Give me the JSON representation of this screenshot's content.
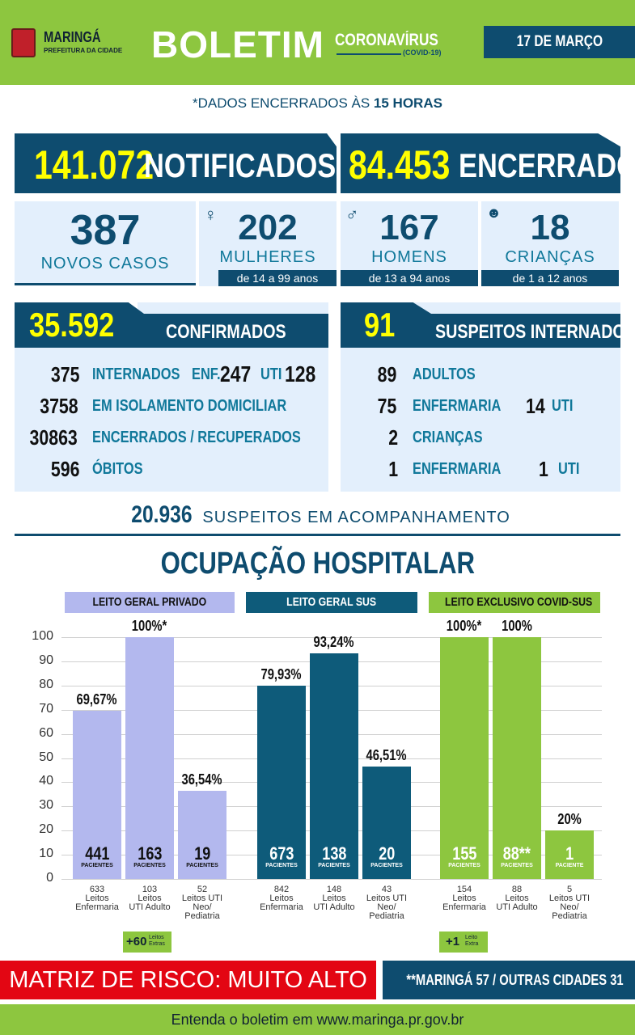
{
  "header": {
    "logo_name": "MARINGÁ",
    "logo_sub": "PREFEITURA DA CIDADE",
    "title": "BOLETIM",
    "subtitle": "CORONAVÍRUS",
    "subtitle_tag": "(COVID-19)",
    "date": "17 DE MARÇO"
  },
  "closing_note": {
    "prefix": "*DADOS ENCERRADOS ÀS ",
    "time": "15 HORAS"
  },
  "totals": {
    "notified_value": "141.072",
    "notified_label": "NOTIFICADOS",
    "closed_value": "84.453",
    "closed_label": "ENCERRADOS"
  },
  "new_cases": {
    "total_value": "387",
    "total_label": "NOVOS CASOS",
    "women_value": "202",
    "women_label": "MULHERES",
    "women_age": "de 14 a 99 anos",
    "men_value": "167",
    "men_label": "HOMENS",
    "men_age": "de 13 a 94 anos",
    "children_value": "18",
    "children_label": "CRIANÇAS",
    "children_age": "de 1 a 12 anos"
  },
  "confirmed": {
    "value": "35.592",
    "label": "CONFIRMADOS",
    "rows": [
      {
        "num": "375",
        "label": "INTERNADOS"
      },
      {
        "num": "3758",
        "label": "EM ISOLAMENTO DOMICILIAR"
      },
      {
        "num": "30863",
        "label": "ENCERRADOS / RECUPERADOS"
      },
      {
        "num": "596",
        "label": "ÓBITOS"
      }
    ],
    "enf_label": "ENF.",
    "enf_value": "247",
    "uti_label": "UTI",
    "uti_value": "128"
  },
  "suspects": {
    "value": "91",
    "label": "SUSPEITOS INTERNADOS",
    "adults_num": "89",
    "adults_label": "ADULTOS",
    "adults_enf_num": "75",
    "adults_enf_label": "ENFERMARIA",
    "adults_uti_num": "14",
    "adults_uti_label": "UTI",
    "children_num": "2",
    "children_label": "CRIANÇAS",
    "children_enf_num": "1",
    "children_enf_label": "ENFERMARIA",
    "children_uti_num": "1",
    "children_uti_label": "UTI"
  },
  "monitoring": {
    "value": "20.936",
    "label": "SUSPEITOS EM ACOMPANHAMENTO"
  },
  "occupancy": {
    "title": "OCUPAÇÃO HOSPITALAR",
    "patients_label": "PACIENTES",
    "patient_label": "PACIENTE",
    "extra_private": {
      "value": "+60",
      "label": "Leitos Extras"
    },
    "extra_covid": {
      "value": "+1",
      "label": "Leito Extra"
    }
  },
  "chart_data": {
    "type": "bar",
    "ylim": [
      0,
      100
    ],
    "yticks": [
      "0",
      "10",
      "20",
      "30",
      "40",
      "50",
      "60",
      "70",
      "80",
      "90",
      "100"
    ],
    "grid": true,
    "groups": [
      {
        "name": "LEITO GERAL PRIVADO",
        "color": "#b3b8ee",
        "bars": [
          {
            "category": "633 Leitos Enfermaria",
            "beds": "633",
            "l1": "Leitos",
            "l2": "Enfermaria",
            "l3": "",
            "value": 69.67,
            "label": "69,67%",
            "patients": "441"
          },
          {
            "category": "103 Leitos UTI Adulto",
            "beds": "103",
            "l1": "Leitos",
            "l2": "UTI Adulto",
            "l3": "",
            "value": 100,
            "label": "100%*",
            "patients": "163"
          },
          {
            "category": "52 Leitos UTI Neo/Pediatria",
            "beds": "52",
            "l1": "Leitos UTI",
            "l2": "Neo/",
            "l3": "Pediatria",
            "value": 36.54,
            "label": "36,54%",
            "patients": "19"
          }
        ]
      },
      {
        "name": "LEITO GERAL SUS",
        "color": "#0e5b7a",
        "bars": [
          {
            "category": "842 Leitos Enfermaria",
            "beds": "842",
            "l1": "Leitos",
            "l2": "Enfermaria",
            "l3": "",
            "value": 79.93,
            "label": "79,93%",
            "patients": "673"
          },
          {
            "category": "148 Leitos UTI Adulto",
            "beds": "148",
            "l1": "Leitos",
            "l2": "UTI Adulto",
            "l3": "",
            "value": 93.24,
            "label": "93,24%",
            "patients": "138"
          },
          {
            "category": "43 Leitos UTI Neo/Pediatria",
            "beds": "43",
            "l1": "Leitos UTI",
            "l2": "Neo/",
            "l3": "Pediatria",
            "value": 46.51,
            "label": "46,51%",
            "patients": "20"
          }
        ]
      },
      {
        "name": "LEITO EXCLUSIVO COVID-SUS",
        "color": "#8dc63f",
        "bars": [
          {
            "category": "154 Leitos Enfermaria",
            "beds": "154",
            "l1": "Leitos",
            "l2": "Enfermaria",
            "l3": "",
            "value": 100,
            "label": "100%*",
            "patients": "155"
          },
          {
            "category": "88 Leitos UTI Adulto",
            "beds": "88",
            "l1": "Leitos",
            "l2": "UTI Adulto",
            "l3": "",
            "value": 100,
            "label": "100%",
            "patients": "88**"
          },
          {
            "category": "5 Leitos UTI Neo/Pediatria",
            "beds": "5",
            "l1": "Leitos UTI",
            "l2": "Neo/",
            "l3": "Pediatria",
            "value": 20,
            "label": "20%",
            "patients": "1"
          }
        ]
      }
    ]
  },
  "risk": {
    "label": "MATRIZ DE RISCO: MUITO ALTO",
    "note": "**MARINGÁ 57 / OUTRAS CIDADES 31"
  },
  "footer": {
    "text": "Entenda o boletim em www.maringa.pr.gov.br"
  },
  "colors": {
    "green": "#8dc63f",
    "navy": "#0e4c6f",
    "red": "#e30613",
    "light": "#e3effc"
  }
}
